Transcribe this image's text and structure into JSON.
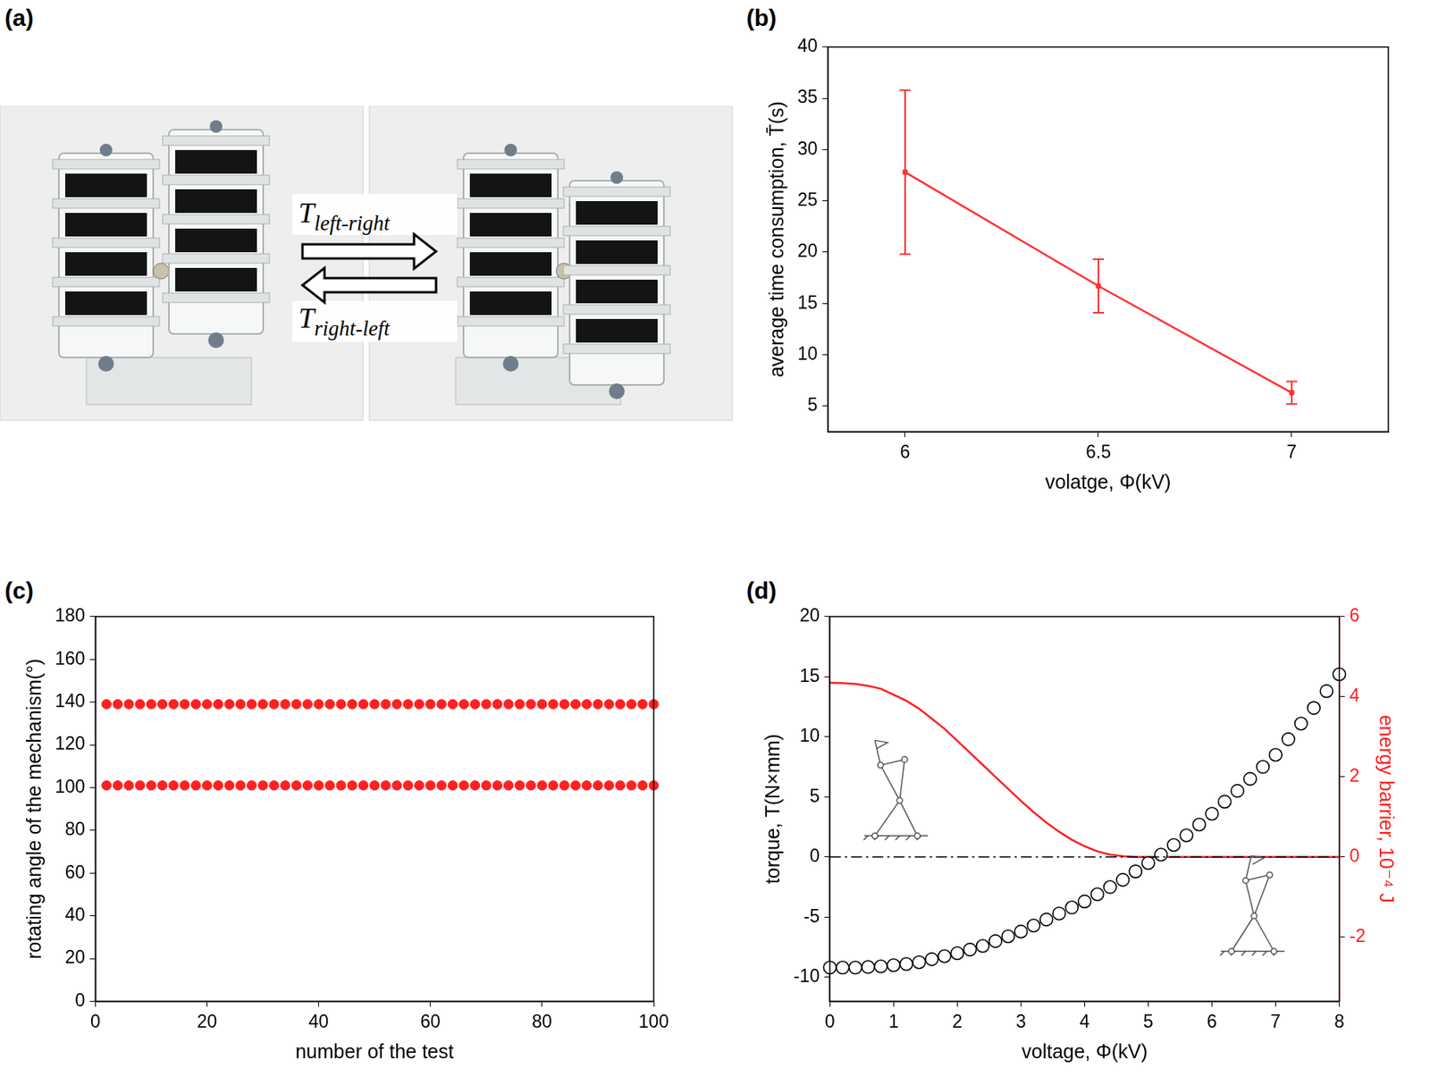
{
  "panel_a": {
    "panel_label": "(a)",
    "type": "photo",
    "arrows": [
      {
        "direction": "right",
        "label": "T",
        "subscript": "left-right"
      },
      {
        "direction": "left",
        "label": "T",
        "subscript": "right-left"
      }
    ]
  },
  "chart_data": [
    {
      "panel_label": "(b)",
      "type": "line",
      "x_label": "volatge, Φ(kV)",
      "y_label": "average time consumption, T̄(s)",
      "x": [
        6,
        6.5,
        7
      ],
      "series": [
        {
          "color": "#ff3030",
          "marker": "square",
          "line_style": "solid",
          "values": [
            27.8,
            16.7,
            6.3
          ],
          "errors": [
            8.0,
            2.6,
            1.1
          ]
        }
      ],
      "xlim": [
        5.8,
        7.25
      ],
      "xticks": [
        6,
        6.5,
        7
      ],
      "ylim": [
        2.5,
        40
      ],
      "yticks": [
        5,
        10,
        15,
        20,
        25,
        30,
        35,
        40
      ],
      "grid": false
    },
    {
      "panel_label": "(c)",
      "type": "scatter",
      "x_label": "number of the test",
      "y_label": "rotating angle of the mechanism(°)",
      "x": [
        2,
        4,
        6,
        8,
        10,
        12,
        14,
        16,
        18,
        20,
        22,
        24,
        26,
        28,
        30,
        32,
        34,
        36,
        38,
        40,
        42,
        44,
        46,
        48,
        50,
        52,
        54,
        56,
        58,
        60,
        62,
        64,
        66,
        68,
        70,
        72,
        74,
        76,
        78,
        80,
        82,
        84,
        86,
        88,
        90,
        92,
        94,
        96,
        98,
        100
      ],
      "series": [
        {
          "color": "#ff2020",
          "marker": "circle",
          "line_style": "none",
          "values": [
            139,
            139,
            139,
            139,
            139,
            139,
            139,
            139,
            139,
            139,
            139,
            139,
            139,
            139,
            139,
            139,
            139,
            139,
            139,
            139,
            139,
            139,
            139,
            139,
            139,
            139,
            139,
            139,
            139,
            139,
            139,
            139,
            139,
            139,
            139,
            139,
            139,
            139,
            139,
            139,
            139,
            139,
            139,
            139,
            139,
            139,
            139,
            139,
            139,
            139
          ]
        },
        {
          "color": "#ff2020",
          "marker": "circle",
          "line_style": "none",
          "values": [
            101,
            101,
            101,
            101,
            101,
            101,
            101,
            101,
            101,
            101,
            101,
            101,
            101,
            101,
            101,
            101,
            101,
            101,
            101,
            101,
            101,
            101,
            101,
            101,
            101,
            101,
            101,
            101,
            101,
            101,
            101,
            101,
            101,
            101,
            101,
            101,
            101,
            101,
            101,
            101,
            101,
            101,
            101,
            101,
            101,
            101,
            101,
            101,
            101,
            101
          ]
        }
      ],
      "xlim": [
        0,
        100
      ],
      "xticks": [
        0,
        20,
        40,
        60,
        80,
        100
      ],
      "ylim": [
        0,
        180
      ],
      "yticks": [
        0,
        20,
        40,
        60,
        80,
        100,
        120,
        140,
        160,
        180
      ],
      "grid": false
    },
    {
      "panel_label": "(d)",
      "type": "line",
      "x_label": "voltage, Φ(kV)",
      "y_label": "torque, T(N×mm)",
      "y2_label": "energy barrier, 10⁻⁴ J",
      "x": [
        0,
        0.2,
        0.4,
        0.6,
        0.8,
        1,
        1.2,
        1.4,
        1.6,
        1.8,
        2,
        2.2,
        2.4,
        2.6,
        2.8,
        3,
        3.2,
        3.4,
        3.6,
        3.8,
        4,
        4.2,
        4.4,
        4.6,
        4.8,
        5,
        5.2,
        5.4,
        5.6,
        5.8,
        6,
        6.2,
        6.4,
        6.6,
        6.8,
        7,
        7.2,
        7.4,
        7.6,
        7.8,
        8
      ],
      "series": [
        {
          "color": "#000000",
          "marker": "none",
          "line_style": "dashdot",
          "x": [
            0,
            8
          ],
          "values": [
            0,
            0
          ]
        },
        {
          "color": "#000000",
          "marker": "open_circle",
          "line_style": "none",
          "values": [
            -9.2,
            -9.2,
            -9.2,
            -9.15,
            -9.1,
            -9.0,
            -8.9,
            -8.75,
            -8.5,
            -8.25,
            -8.0,
            -7.7,
            -7.4,
            -7.0,
            -6.6,
            -6.2,
            -5.7,
            -5.2,
            -4.7,
            -4.2,
            -3.7,
            -3.1,
            -2.5,
            -1.9,
            -1.2,
            -0.5,
            0.2,
            1.0,
            1.8,
            2.7,
            3.6,
            4.6,
            5.5,
            6.5,
            7.5,
            8.5,
            9.8,
            11.1,
            12.4,
            13.8,
            15.2
          ]
        },
        {
          "color": "#ff2020",
          "marker": "none",
          "line_style": "solid",
          "axis": "y2",
          "values": [
            4.35,
            4.34,
            4.32,
            4.27,
            4.2,
            4.05,
            3.9,
            3.7,
            3.45,
            3.2,
            2.9,
            2.6,
            2.3,
            2.0,
            1.7,
            1.4,
            1.12,
            0.86,
            0.63,
            0.43,
            0.27,
            0.14,
            0.06,
            0.02,
            0,
            0,
            0,
            0,
            0,
            0,
            0,
            0,
            0,
            0,
            0,
            0,
            0,
            0,
            0,
            0,
            0
          ]
        }
      ],
      "xlim": [
        0,
        8
      ],
      "xticks": [
        0,
        1,
        2,
        3,
        4,
        5,
        6,
        7,
        8
      ],
      "ylim": [
        -12,
        20
      ],
      "yticks": [
        -10,
        -5,
        0,
        5,
        10,
        15,
        20
      ],
      "y2lim": [
        -3.6,
        6
      ],
      "y2ticks": [
        -2,
        0,
        2,
        4,
        6
      ],
      "grid": false
    }
  ]
}
